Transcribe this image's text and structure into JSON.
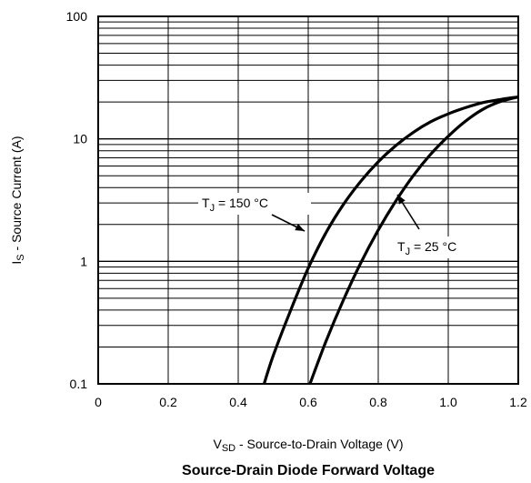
{
  "chart_data": {
    "type": "line",
    "title": "Source-Drain Diode Forward Voltage",
    "xlabel": {
      "main": "V",
      "sub": "SD",
      "rest": " - Source-to-Drain Voltage (V)"
    },
    "ylabel": {
      "main": "I",
      "sub": "S",
      "rest": " - Source Current (A)"
    },
    "xlim": [
      0,
      1.2
    ],
    "ylim": [
      0.1,
      100
    ],
    "yscale": "log",
    "grid": true,
    "x_ticks": [
      0,
      0.2,
      0.4,
      0.6,
      0.8,
      1.0,
      1.2
    ],
    "x_tick_labels": [
      "0",
      "0.2",
      "0.4",
      "0.6",
      "0.8",
      "1.0",
      "1.2"
    ],
    "y_ticks": [
      0.1,
      1,
      10,
      100
    ],
    "y_tick_labels": [
      "0.1",
      "1",
      "10",
      "100"
    ],
    "series": [
      {
        "name": "T_J = 150 °C",
        "label": {
          "main": "T",
          "sub": "J",
          "rest": " = 150 °C"
        },
        "x": [
          0.474,
          0.5,
          0.55,
          0.6,
          0.65,
          0.7,
          0.75,
          0.8,
          0.85,
          0.9,
          0.95,
          1.0,
          1.05,
          1.1,
          1.15,
          1.2
        ],
        "y": [
          0.1,
          0.17,
          0.4,
          0.88,
          1.7,
          2.9,
          4.5,
          6.5,
          8.8,
          11.3,
          13.8,
          16.0,
          18.0,
          19.8,
          21.0,
          22.0
        ]
      },
      {
        "name": "T_J = 25 °C",
        "label": {
          "main": "T",
          "sub": "J",
          "rest": " = 25 °C"
        },
        "x": [
          0.605,
          0.65,
          0.7,
          0.75,
          0.8,
          0.85,
          0.9,
          0.95,
          1.0,
          1.05,
          1.1,
          1.15,
          1.2
        ],
        "y": [
          0.1,
          0.22,
          0.48,
          0.97,
          1.8,
          3.1,
          5.0,
          7.5,
          10.5,
          14.0,
          17.5,
          20.2,
          22.0
        ]
      }
    ]
  }
}
